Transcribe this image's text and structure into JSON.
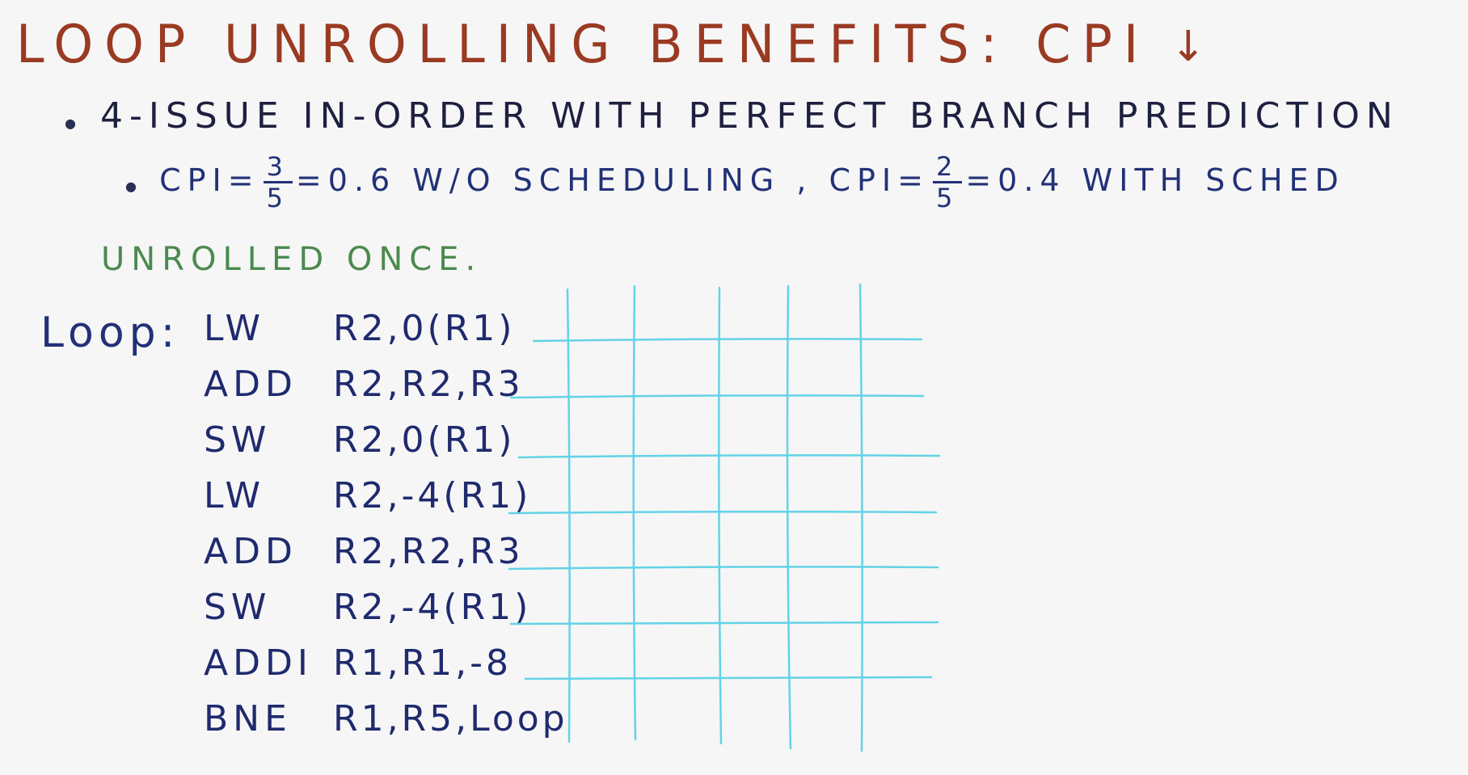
{
  "title": "LOOP UNROLLING BENEFITS: CPI",
  "title_arrow_icon": "down-arrow-icon",
  "bullet1": {
    "text": "4-ISSUE IN-ORDER WITH PERFECT BRANCH PREDICTION"
  },
  "bullet2": {
    "cpi1_label": "CPI=",
    "cpi1_num": "3",
    "cpi1_den": "5",
    "cpi1_result": "=0.6 W/O SCHEDULING ,",
    "cpi2_label": "CPI=",
    "cpi2_num": "2",
    "cpi2_den": "5",
    "cpi2_result": "=0.4 WITH SCHED"
  },
  "unrolled_label": "UNROLLED ONCE.",
  "loop_label": "Loop:",
  "code": [
    {
      "op": "LW",
      "args": "R2,0(R1)"
    },
    {
      "op": "ADD",
      "args": "R2,R2,R3"
    },
    {
      "op": "SW",
      "args": "R2,0(R1)"
    },
    {
      "op": "LW",
      "args": "R2,-4(R1)"
    },
    {
      "op": "ADD",
      "args": "R2,R2,R3"
    },
    {
      "op": "SW",
      "args": "R2,-4(R1)"
    },
    {
      "op": "ADDI",
      "args": "R1,R1,-8"
    },
    {
      "op": "BNE",
      "args": "R1,R5,Loop"
    }
  ],
  "colors": {
    "title": "#9a3a22",
    "black_ink": "#1e2040",
    "blue_ink": "#223177",
    "green_ink": "#4b8a4f",
    "grid": "#62d3e6"
  }
}
